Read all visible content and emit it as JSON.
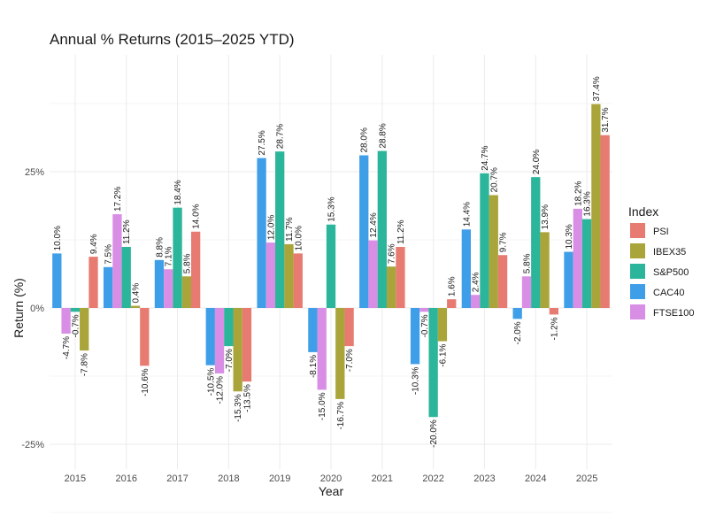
{
  "chart_data": {
    "type": "bar",
    "title": "Annual % Returns (2015–2025 YTD)",
    "xlabel": "Year",
    "ylabel": "Return (%)",
    "ylim": [
      -30,
      42
    ],
    "yticks": [
      -25,
      0,
      25
    ],
    "ytick_labels": [
      "-25%",
      "0%",
      "25%"
    ],
    "grid": true,
    "legend": {
      "title": "Index",
      "placement": "right"
    },
    "categories": [
      "2015",
      "2016",
      "2017",
      "2018",
      "2019",
      "2020",
      "2021",
      "2022",
      "2023",
      "2024",
      "2025"
    ],
    "series": [
      {
        "name": "CAC40",
        "color": "#3f9ee8",
        "values": [
          10.0,
          7.5,
          8.8,
          -10.5,
          27.5,
          -8.1,
          28.0,
          -10.3,
          14.4,
          -2.0,
          10.3
        ]
      },
      {
        "name": "FTSE100",
        "color": "#d98ee6",
        "values": [
          -4.7,
          17.2,
          7.1,
          -12.0,
          12.0,
          -15.0,
          12.4,
          -0.7,
          2.4,
          5.8,
          18.2
        ]
      },
      {
        "name": "S&P500",
        "color": "#2bb59a",
        "values": [
          -0.7,
          11.2,
          18.4,
          -7.0,
          28.7,
          15.3,
          28.8,
          -20.0,
          24.7,
          24.0,
          16.3
        ]
      },
      {
        "name": "IBEX35",
        "color": "#a9a53a",
        "values": [
          -7.8,
          0.4,
          5.8,
          -15.3,
          11.7,
          -16.7,
          7.6,
          -6.1,
          20.7,
          13.9,
          37.4
        ]
      },
      {
        "name": "PSI",
        "color": "#e77b72",
        "values": [
          9.4,
          -10.6,
          14.0,
          -13.5,
          10.0,
          -7.0,
          11.2,
          1.6,
          9.7,
          -1.2,
          31.7
        ]
      }
    ],
    "legend_order": [
      "PSI",
      "IBEX35",
      "S&P500",
      "CAC40",
      "FTSE100"
    ]
  }
}
